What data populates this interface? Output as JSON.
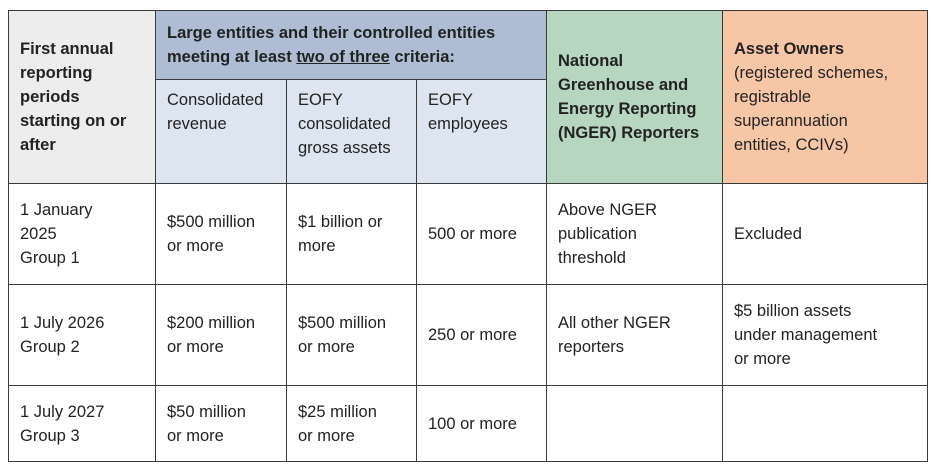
{
  "header": {
    "first_col": "First annual\nreporting\nperiods\nstarting on or\nafter",
    "large_prefix": "Large entities and their controlled entities meeting at least ",
    "large_underlined": "two of three",
    "large_suffix": " criteria:",
    "sub_revenue": "Consolidated\nrevenue",
    "sub_assets": "EOFY\nconsolidated\ngross assets",
    "sub_employees": "EOFY\nemployees",
    "nger": "National\nGreenhouse and\nEnergy Reporting\n(NGER) Reporters",
    "asset_title": "Asset Owners",
    "asset_detail": "(registered schemes,\nregistrable\nsuperannuation\nentities, CCIVs)"
  },
  "rows": [
    {
      "period": "1 January\n2025\nGroup 1",
      "revenue": "$500 million\nor more",
      "assets": "$1 billion or\nmore",
      "employees": "500 or more",
      "nger": "Above NGER\npublication\nthreshold",
      "asset_owners": "Excluded"
    },
    {
      "period": "1 July 2026\nGroup 2",
      "revenue": "$200 million\nor more",
      "assets": "$500 million\nor more",
      "employees": "250 or more",
      "nger": "All other NGER\nreporters",
      "asset_owners": "$5 billion assets\nunder management\nor more"
    },
    {
      "period": "1 July 2027\nGroup 3",
      "revenue": "$50 million\nor more",
      "assets": "$25 million\nor more",
      "employees": "100 or more",
      "nger": "",
      "asset_owners": ""
    }
  ]
}
